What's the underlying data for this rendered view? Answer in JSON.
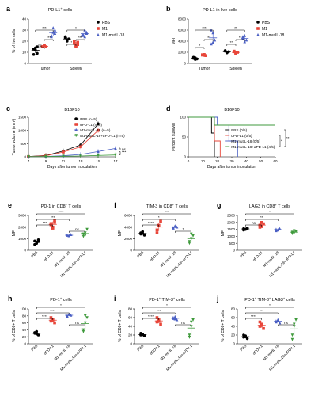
{
  "colors": {
    "pbs": "#000000",
    "apdl1": "#e8463a",
    "m1": "#e8463a",
    "mutil18": "#4a5fc4",
    "combo": "#3f9a3c",
    "axis": "#000000"
  },
  "chart_data": [
    {
      "panel": "a",
      "type": "scatter",
      "title": "PD-L1+ cells",
      "title_html": "PD-L1<tspan baseline-shift='super' font-size='4'>+</tspan> cells",
      "ylabel": "% of live cells",
      "ylim": [
        0,
        40
      ],
      "yticks": [
        0,
        10,
        20,
        30,
        40
      ],
      "groups": [
        "Tumor",
        "Spleen"
      ],
      "legend": [
        "PBS",
        "M1",
        "M1-mutIL-18"
      ],
      "series": [
        {
          "name": "PBS",
          "group": 0,
          "values": [
            13,
            14,
            9,
            8,
            12,
            15
          ]
        },
        {
          "name": "M1",
          "group": 0,
          "values": [
            15,
            16,
            15,
            15,
            16
          ]
        },
        {
          "name": "M1-mutIL-18",
          "group": 0,
          "values": [
            25,
            32,
            27,
            24,
            28,
            30
          ]
        },
        {
          "name": "PBS",
          "group": 1,
          "values": [
            23,
            20,
            22,
            24,
            21
          ]
        },
        {
          "name": "M1",
          "group": 1,
          "values": [
            18,
            16,
            17,
            20,
            15,
            19
          ]
        },
        {
          "name": "M1-mutIL-18",
          "group": 1,
          "values": [
            25,
            30,
            28,
            26,
            24,
            27
          ]
        }
      ],
      "significance": [
        "ns",
        "***",
        "***",
        "*",
        "***",
        "*"
      ]
    },
    {
      "panel": "b",
      "type": "scatter",
      "title": "PD-L1 in live cells",
      "ylabel": "MFI",
      "ylim": [
        0,
        8000
      ],
      "yticks": [
        0,
        2000,
        4000,
        6000,
        8000
      ],
      "groups": [
        "Tumor",
        "Spleen"
      ],
      "legend": [
        "PBS",
        "M1",
        "M1-mutIL-18"
      ],
      "series": [
        {
          "name": "PBS",
          "group": 0,
          "values": [
            900,
            1000,
            800,
            1100,
            700
          ]
        },
        {
          "name": "M1",
          "group": 0,
          "values": [
            1500,
            1600,
            1400,
            1550,
            1450
          ]
        },
        {
          "name": "M1-mutIL-18",
          "group": 0,
          "values": [
            3500,
            5500,
            4200,
            6000,
            3800
          ]
        },
        {
          "name": "PBS",
          "group": 1,
          "values": [
            2200,
            2000,
            2100,
            2300,
            1900
          ]
        },
        {
          "name": "M1",
          "group": 1,
          "values": [
            2100,
            1900,
            2000,
            2200,
            1700
          ]
        },
        {
          "name": "M1-mutIL-18",
          "group": 1,
          "values": [
            4500,
            5000,
            4200,
            4800,
            3900
          ]
        }
      ],
      "significance": [
        "*",
        "***",
        "***",
        "**",
        "**",
        "**"
      ]
    },
    {
      "panel": "c",
      "type": "line",
      "title": "B16F10",
      "xlabel": "Days after tumor inoculation",
      "ylabel": "Tumor volume (mm³)",
      "x": [
        7,
        9,
        11,
        13,
        15,
        17
      ],
      "ylim": [
        0,
        1500
      ],
      "yticks": [
        0,
        500,
        1000,
        1500
      ],
      "series": [
        {
          "name": "PBS (n=5)",
          "values": [
            10,
            50,
            220,
            450,
            1250,
            null
          ]
        },
        {
          "name": "αPD-L1 (n=5)",
          "values": [
            10,
            40,
            180,
            380,
            1000,
            null
          ]
        },
        {
          "name": "M1-mutIL-18 (n=5)",
          "values": [
            5,
            15,
            40,
            90,
            200,
            320
          ]
        },
        {
          "name": "M1-mutIL-18+αPD-L1 (n=5)",
          "values": [
            5,
            10,
            20,
            30,
            50,
            70
          ]
        }
      ],
      "significance": [
        "ns",
        "***"
      ]
    },
    {
      "panel": "d",
      "type": "line",
      "title": "B16F10",
      "xlabel": "Days after tumor inoculation",
      "ylabel": "Percent survival",
      "xlim": [
        0,
        60
      ],
      "xticks": [
        0,
        10,
        20,
        30,
        40,
        50,
        60
      ],
      "ylim": [
        0,
        100
      ],
      "yticks": [
        0,
        50,
        100
      ],
      "series": [
        {
          "name": "PBS (0/5)",
          "values": [
            [
              0,
              100
            ],
            [
              16,
              100
            ],
            [
              16,
              60
            ],
            [
              18,
              60
            ],
            [
              18,
              0
            ]
          ]
        },
        {
          "name": "αPD-L1 (0/5)",
          "values": [
            [
              0,
              100
            ],
            [
              18,
              100
            ],
            [
              18,
              40
            ],
            [
              22,
              40
            ],
            [
              22,
              0
            ]
          ]
        },
        {
          "name": "M1-mutIL-18 (0/5)",
          "values": [
            [
              0,
              100
            ],
            [
              20,
              100
            ],
            [
              20,
              80
            ],
            [
              28,
              80
            ],
            [
              28,
              40
            ],
            [
              34,
              40
            ],
            [
              34,
              0
            ]
          ]
        },
        {
          "name": "M1-mutIL-18+αPD-L1 (4/5)",
          "values": [
            [
              0,
              100
            ],
            [
              18,
              100
            ],
            [
              18,
              80
            ],
            [
              60,
              80
            ]
          ]
        }
      ],
      "significance": [
        "*",
        "**"
      ]
    },
    {
      "panel": "e",
      "type": "scatter",
      "title": "PD-1 in CD8+ T cells",
      "title_html": "PD-1 in CD8<tspan baseline-shift='super' font-size='4'>+</tspan> T cells",
      "ylabel": "MFI",
      "ylim": [
        0,
        3000
      ],
      "yticks": [
        0,
        1000,
        2000,
        3000
      ],
      "categories": [
        "PBS",
        "αPD-L1",
        "M1-mutIL-18",
        "M1-mutIL-18+αPD-L1"
      ],
      "values": [
        [
          500,
          700,
          900,
          800,
          600,
          750
        ],
        [
          2300,
          2000,
          2600,
          2200,
          1900,
          2400
        ],
        [
          1300,
          1250,
          1350,
          1300,
          1280
        ],
        [
          1200,
          1500,
          1800,
          1400,
          1300
        ]
      ],
      "significance": [
        "***",
        "***",
        "****",
        "ns"
      ]
    },
    {
      "panel": "f",
      "type": "scatter",
      "title": "TIM-3 in CD8+ T cells",
      "title_html": "TIM-3 in CD8<tspan baseline-shift='super' font-size='4'>+</tspan> T cells",
      "ylabel": "MFI",
      "ylim": [
        0,
        6000
      ],
      "yticks": [
        0,
        2000,
        4000,
        6000
      ],
      "categories": [
        "PBS",
        "αPD-L1",
        "M1-mutIL-18",
        "M1-mutIL-18+αPD-L1"
      ],
      "values": [
        [
          2800,
          3200,
          2600,
          3000,
          2900
        ],
        [
          3500,
          4200,
          5000,
          3000,
          4300
        ],
        [
          3800,
          4100,
          4000,
          3900,
          4200
        ],
        [
          1500,
          2000,
          2500,
          1200,
          2800
        ]
      ],
      "significance": [
        "****",
        "*",
        "***",
        "*"
      ]
    },
    {
      "panel": "g",
      "type": "scatter",
      "title": "LAG3 in CD8+ T cells",
      "title_html": "LAG3 in CD8<tspan baseline-shift='super' font-size='4'>+</tspan> T cells",
      "ylabel": "MFI",
      "ylim": [
        0,
        2500
      ],
      "yticks": [
        0,
        500,
        1000,
        1500,
        2000,
        2500
      ],
      "categories": [
        "PBS",
        "αPD-L1",
        "M1-mutIL-18",
        "M1-mutIL-18+αPD-L1"
      ],
      "values": [
        [
          1550,
          1500,
          1600,
          1450,
          1500,
          1580
        ],
        [
          1800,
          1700,
          1900,
          1650,
          2000
        ],
        [
          1500,
          1450,
          1550,
          1400,
          1480
        ],
        [
          1300,
          1250,
          1350,
          1200,
          1400
        ]
      ],
      "significance": [
        "ns",
        "**",
        "*"
      ]
    },
    {
      "panel": "h",
      "type": "scatter",
      "title": "PD-1+ cells",
      "title_html": "PD-1<tspan baseline-shift='super' font-size='4'>+</tspan> cells",
      "ylabel": "% of CD8+ T cells",
      "ylim": [
        0,
        100
      ],
      "yticks": [
        0,
        20,
        40,
        60,
        80,
        100
      ],
      "categories": [
        "PBS",
        "αPD-L1",
        "M1-mutIL-18",
        "M1-mutIL-18+αPD-L1"
      ],
      "values": [
        [
          30,
          35,
          25,
          32,
          28
        ],
        [
          65,
          70,
          60,
          75,
          68
        ],
        [
          80,
          85,
          82,
          78,
          84
        ],
        [
          40,
          60,
          75,
          35,
          80
        ]
      ],
      "significance": [
        "****",
        "****",
        "*",
        "ns"
      ]
    },
    {
      "panel": "i",
      "type": "scatter",
      "title": "PD-1+ TIM-3+ cells",
      "title_html": "PD-1<tspan baseline-shift='super' font-size='4'>+</tspan> TIM-3<tspan baseline-shift='super' font-size='4'>+</tspan> cells",
      "ylabel": "% of CD8+ T cells",
      "ylim": [
        0,
        80
      ],
      "yticks": [
        0,
        20,
        40,
        60,
        80
      ],
      "categories": [
        "PBS",
        "αPD-L1",
        "M1-mutIL-18",
        "M1-mutIL-18+αPD-L1"
      ],
      "values": [
        [
          20,
          22,
          18,
          24,
          21
        ],
        [
          50,
          55,
          45,
          60,
          52
        ],
        [
          58,
          62,
          55,
          60,
          57
        ],
        [
          20,
          40,
          55,
          15,
          50
        ]
      ],
      "significance": [
        "****",
        "***",
        "*",
        "ns"
      ]
    },
    {
      "panel": "j",
      "type": "scatter",
      "title": "PD-1+ TIM-3+ LAG3+ cells",
      "title_html": "PD-1<tspan baseline-shift='super' font-size='4'>+</tspan> TIM-3<tspan baseline-shift='super' font-size='4'>+</tspan> LAG3<tspan baseline-shift='super' font-size='4'>+</tspan> cells",
      "ylabel": "% of CD8+ T cells",
      "ylim": [
        0,
        80
      ],
      "yticks": [
        0,
        20,
        40,
        60,
        80
      ],
      "categories": [
        "PBS",
        "αPD-L1",
        "M1-mutIL-18",
        "M1-mutIL-18+αPD-L1"
      ],
      "values": [
        [
          15,
          18,
          12,
          20,
          16
        ],
        [
          40,
          45,
          35,
          50,
          42
        ],
        [
          50,
          55,
          48,
          52,
          53
        ],
        [
          20,
          40,
          55,
          10,
          45
        ]
      ],
      "significance": [
        "****",
        "***",
        "*",
        "ns"
      ]
    }
  ]
}
